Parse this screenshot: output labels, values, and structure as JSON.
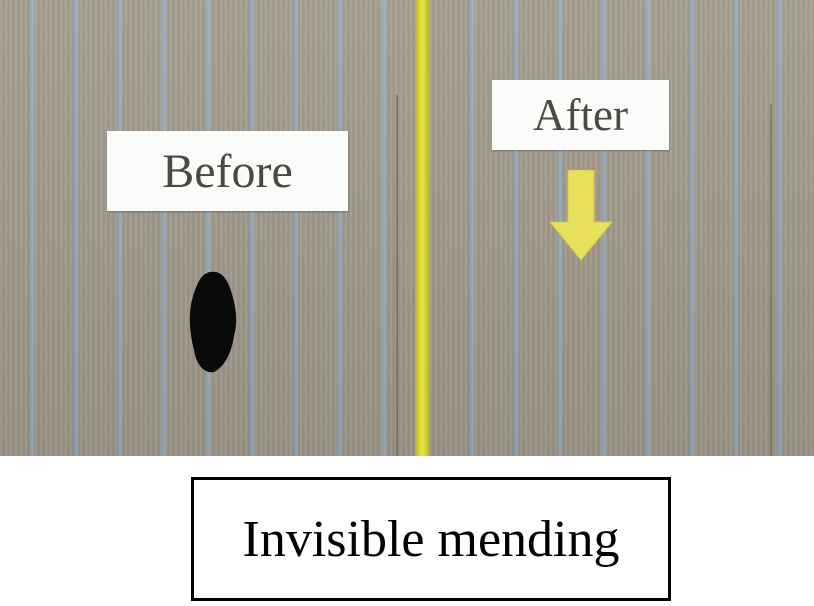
{
  "photo": {
    "before_label": "Before",
    "after_label": "After",
    "fabric_color": "#a39b8d",
    "stripe_color": "#8da3b3",
    "divider_color": "#dede35",
    "arrow_color": "#e8e05a",
    "arrow_icon": "arrow-down-icon",
    "hole_color": "#0a0a0a"
  },
  "caption": {
    "text": "Invisible mending"
  }
}
